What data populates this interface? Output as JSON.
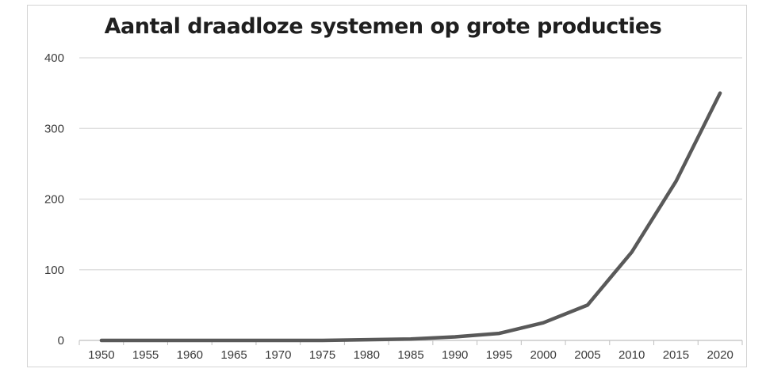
{
  "chart_data": {
    "type": "line",
    "title": "Aantal draadloze systemen op grote producties",
    "xlabel": "",
    "ylabel": "",
    "x": [
      "1950",
      "1955",
      "1960",
      "1965",
      "1970",
      "1975",
      "1980",
      "1985",
      "1990",
      "1995",
      "2000",
      "2005",
      "2010",
      "2015",
      "2020"
    ],
    "series": [
      {
        "values": [
          0,
          0,
          0,
          0,
          0,
          0,
          1,
          2,
          5,
          10,
          25,
          50,
          125,
          225,
          350
        ]
      }
    ],
    "ylim": [
      0,
      400
    ],
    "yticks": [
      0,
      100,
      200,
      300,
      400
    ],
    "grid": true,
    "legend": "none",
    "line_color": "#595959",
    "grid_color": "#d9d9d9"
  }
}
